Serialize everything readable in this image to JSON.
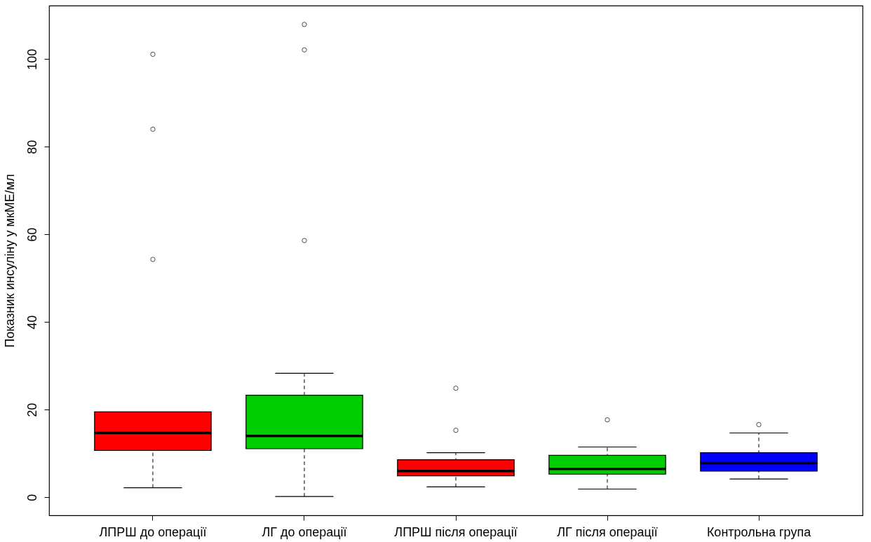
{
  "chart_data": {
    "type": "box",
    "ylabel": "Показник инсуліну у мкМЕ/мл",
    "categories": [
      "ЛПРШ до операції",
      "ЛГ до операції",
      "ЛПРШ після операції",
      "ЛГ після операції",
      "Контрольна група"
    ],
    "colors": [
      "#ff0000",
      "#00cd00",
      "#ff0000",
      "#00cd00",
      "#0000ff"
    ],
    "boxes": [
      {
        "low": 2.2,
        "q1": 10.7,
        "median": 14.7,
        "q3": 19.5,
        "high": 19.5,
        "outliers": [
          54.3,
          84,
          101.1
        ]
      },
      {
        "low": 0.2,
        "q1": 11.1,
        "median": 14,
        "q3": 23.3,
        "high": 28.3,
        "outliers": [
          58.6,
          102.1,
          107.9
        ]
      },
      {
        "low": 2.4,
        "q1": 4.9,
        "median": 6,
        "q3": 8.6,
        "high": 10.2,
        "outliers": [
          15.3,
          24.9
        ]
      },
      {
        "low": 1.9,
        "q1": 5.3,
        "median": 6.5,
        "q3": 9.6,
        "high": 11.5,
        "outliers": [
          17.7
        ]
      },
      {
        "low": 4.2,
        "q1": 6,
        "median": 7.8,
        "q3": 10.2,
        "high": 14.7,
        "outliers": [
          16.6
        ]
      }
    ],
    "ylim": [
      -4.1,
      112.2
    ],
    "yticks": [
      0,
      20,
      40,
      60,
      80,
      100
    ],
    "grid": false
  }
}
